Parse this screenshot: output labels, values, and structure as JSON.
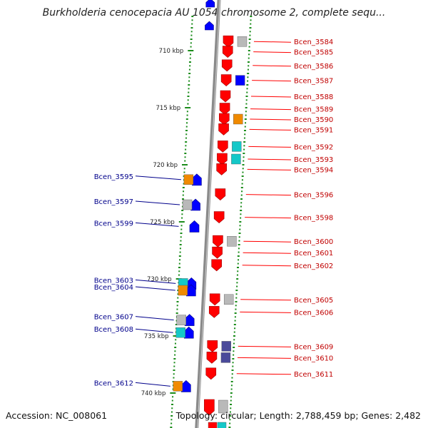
{
  "title": "Burkholderia cenocepacia AU 1054 chromosome 2, complete sequ...",
  "footer": {
    "accession": "Accession: NC_008061",
    "summary": "Topology: circular; Length: 2,788,459 bp; Genes: 2,482"
  },
  "colors": {
    "forward_gene": "#0000ff",
    "reverse_gene": "#ff0000",
    "forward_label": "#00008b",
    "reverse_label": "#c00000",
    "tick": "#1a8c1a",
    "backbone": "#8a8a8a",
    "feature_orange": "#f08a00",
    "feature_gray": "#b9b9b9",
    "feature_cyan": "#14c8c8",
    "feature_navy": "#4a4a9a"
  },
  "scale_labels": [
    {
      "kbp": 710,
      "text": "710 kbp"
    },
    {
      "kbp": 715,
      "text": "715 kbp"
    },
    {
      "kbp": 720,
      "text": "720 kbp"
    },
    {
      "kbp": 725,
      "text": "725 kbp"
    },
    {
      "kbp": 730,
      "text": "730 kbp"
    },
    {
      "kbp": 735,
      "text": "735 kbp"
    },
    {
      "kbp": 740,
      "text": "740 kbp"
    }
  ],
  "genes_forward": [
    {
      "label": "Bcen_3595",
      "kbp": 721.3
    },
    {
      "label": "Bcen_3597",
      "kbp": 723.5
    },
    {
      "label": "Bcen_3599",
      "kbp": 725.4
    },
    {
      "label": "Bcen_3603",
      "kbp": 730.4
    },
    {
      "label": "Bcen_3604",
      "kbp": 731.0
    },
    {
      "label": "Bcen_3607",
      "kbp": 733.6
    },
    {
      "label": "Bcen_3608",
      "kbp": 734.7
    },
    {
      "label": "Bcen_3612",
      "kbp": 739.4
    }
  ],
  "genes_reverse": [
    {
      "label": "Bcen_3584",
      "kbp": 709.2
    },
    {
      "label": "Bcen_3585",
      "kbp": 710.1
    },
    {
      "label": "Bcen_3586",
      "kbp": 711.3
    },
    {
      "label": "Bcen_3587",
      "kbp": 712.6
    },
    {
      "label": "Bcen_3588",
      "kbp": 714.0
    },
    {
      "label": "Bcen_3589",
      "kbp": 715.1
    },
    {
      "label": "Bcen_3590",
      "kbp": 716.0
    },
    {
      "label": "Bcen_3591",
      "kbp": 716.9
    },
    {
      "label": "Bcen_3592",
      "kbp": 718.4
    },
    {
      "label": "Bcen_3593",
      "kbp": 719.5
    },
    {
      "label": "Bcen_3594",
      "kbp": 720.4
    },
    {
      "label": "Bcen_3596",
      "kbp": 722.6
    },
    {
      "label": "Bcen_3598",
      "kbp": 724.6
    },
    {
      "label": "Bcen_3600",
      "kbp": 726.7
    },
    {
      "label": "Bcen_3601",
      "kbp": 727.7
    },
    {
      "label": "Bcen_3602",
      "kbp": 728.8
    },
    {
      "label": "Bcen_3605",
      "kbp": 731.8
    },
    {
      "label": "Bcen_3606",
      "kbp": 732.9
    },
    {
      "label": "Bcen_3609",
      "kbp": 735.9
    },
    {
      "label": "Bcen_3610",
      "kbp": 736.9
    },
    {
      "label": "Bcen_3611",
      "kbp": 738.3
    }
  ]
}
